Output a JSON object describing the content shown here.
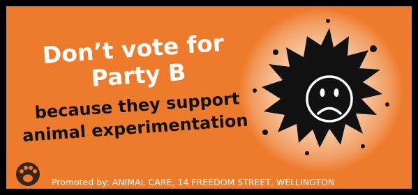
{
  "headline": [
    "Don’t vote for",
    "Party B"
  ],
  "subheadline": [
    "because they support",
    "animal experimentation"
  ],
  "footer": "Promoted by: ANIMAL CARE, 14 FREEDOM STREET, WELLINGTON"
}
